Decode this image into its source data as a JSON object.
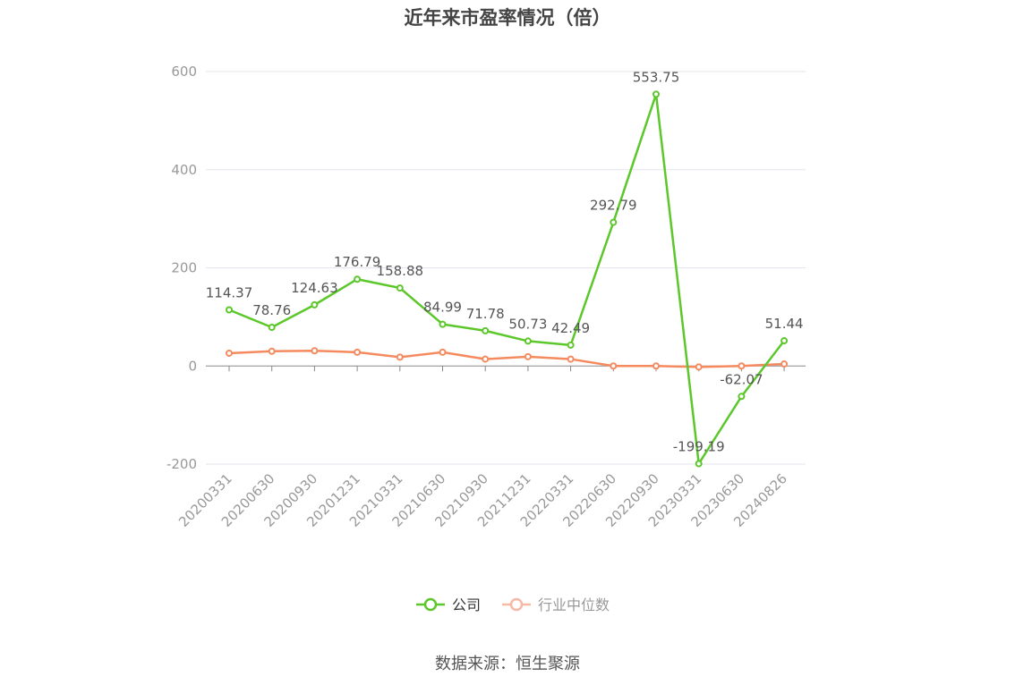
{
  "chart_data": {
    "type": "line",
    "title": "近年来市盈率情况（倍）",
    "categories": [
      "20200331",
      "20200630",
      "20200930",
      "20201231",
      "20210331",
      "20210630",
      "20210930",
      "20211231",
      "20220331",
      "20220630",
      "20220930",
      "20230331",
      "20230630",
      "20240826"
    ],
    "series": [
      {
        "name": "公司",
        "color": "#5cc72b",
        "values": [
          114.37,
          78.76,
          124.63,
          176.79,
          158.88,
          84.99,
          71.78,
          50.73,
          42.49,
          292.79,
          553.75,
          -199.19,
          -62.07,
          51.44
        ],
        "labels": [
          "114.37",
          "78.76",
          "124.63",
          "176.79",
          "158.88",
          "84.99",
          "71.78",
          "50.73",
          "42.49",
          "292.79",
          "553.75",
          "-199.19",
          "-62.07",
          "51.44"
        ]
      },
      {
        "name": "行业中位数",
        "color": "#f58a5f",
        "values": [
          26,
          30,
          31,
          28,
          18,
          28,
          14,
          19,
          14,
          0,
          0,
          -2,
          0,
          4
        ]
      }
    ],
    "ylim": [
      -200,
      600
    ],
    "yticks": [
      "-200",
      "0",
      "200",
      "400",
      "600"
    ],
    "grid": true,
    "legend_position": "bottom"
  },
  "source": "数据来源：恒生聚源"
}
